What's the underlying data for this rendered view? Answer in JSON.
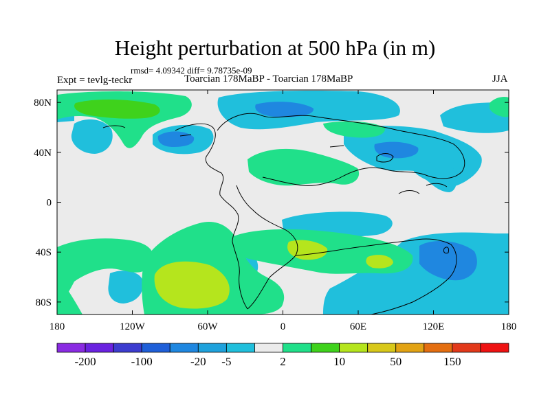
{
  "chart_data": {
    "type": "heatmap",
    "title": "Height perturbation at 500 hPa (in m)",
    "stats_line": "rmsd= 4.09342 diff= 9.78735e-09",
    "left_label": "Expt = tevlg-teckr",
    "subtitle": "Toarcian 178MaBP - Toarcian 178MaBP",
    "season": "JJA",
    "xlim": [
      -180,
      180
    ],
    "ylim": [
      -90,
      90
    ],
    "x_ticks": [
      {
        "value": -180,
        "label": "180"
      },
      {
        "value": -120,
        "label": "120W"
      },
      {
        "value": -60,
        "label": "60W"
      },
      {
        "value": 0,
        "label": "0"
      },
      {
        "value": 60,
        "label": "60E"
      },
      {
        "value": 120,
        "label": "120E"
      },
      {
        "value": 180,
        "label": "180"
      }
    ],
    "y_ticks": [
      {
        "value": 80,
        "label": "80N"
      },
      {
        "value": 40,
        "label": "40N"
      },
      {
        "value": 0,
        "label": "0"
      },
      {
        "value": -40,
        "label": "40S"
      },
      {
        "value": -80,
        "label": "80S"
      }
    ],
    "colorbar": {
      "colors": [
        "#8a2be2",
        "#6a22e0",
        "#3c3ccf",
        "#1f5fd8",
        "#1f87e0",
        "#1fa2dc",
        "#20bfdc",
        "#ebebeb",
        "#20e08a",
        "#3fd21c",
        "#b5e51d",
        "#d8c81a",
        "#e2a314",
        "#e46e10",
        "#e2391a",
        "#ee1212"
      ],
      "tick_labels": [
        {
          "after_index": 1,
          "label": "-200"
        },
        {
          "after_index": 3,
          "label": "-100"
        },
        {
          "after_index": 5,
          "label": "-20"
        },
        {
          "after_index": 6,
          "label": "-5"
        },
        {
          "after_index": 8,
          "label": "2"
        },
        {
          "after_index": 10,
          "label": "10"
        },
        {
          "after_index": 12,
          "label": "50"
        },
        {
          "after_index": 14,
          "label": "150"
        }
      ]
    },
    "fields": [
      {
        "region": "north-atlantic-arctic",
        "lon": [
          -180,
          -95
        ],
        "lat": [
          55,
          90
        ],
        "level": "5 to 10"
      },
      {
        "region": "north-pacific-west",
        "lon": [
          -175,
          -150
        ],
        "lat": [
          30,
          60
        ],
        "level": "-5 to -2"
      },
      {
        "region": "north-pacific-central",
        "lon": [
          -130,
          -85
        ],
        "lat": [
          35,
          60
        ],
        "level": "-5 to -2"
      },
      {
        "region": "arctic-east",
        "lon": [
          -40,
          70
        ],
        "lat": [
          60,
          90
        ],
        "level": "-5 to -2"
      },
      {
        "region": "eurasia",
        "lon": [
          -20,
          55
        ],
        "lat": [
          25,
          55
        ],
        "level": "2 to 5"
      },
      {
        "region": "east-asia",
        "lon": [
          65,
          155
        ],
        "lat": [
          20,
          60
        ],
        "level": "-5 to -2"
      },
      {
        "region": "equatorial-atlantic",
        "lon": [
          0,
          60
        ],
        "lat": [
          -20,
          -5
        ],
        "level": "-5 to -2"
      },
      {
        "region": "south-pacific-core",
        "lon": [
          -110,
          -40
        ],
        "lat": [
          -85,
          -45
        ],
        "level": "10 to 20"
      },
      {
        "region": "south-atlantic",
        "lon": [
          -40,
          110
        ],
        "lat": [
          -60,
          -25
        ],
        "level": "5 to 10"
      },
      {
        "region": "southern-ocean-indian",
        "lon": [
          95,
          180
        ],
        "lat": [
          -90,
          -25
        ],
        "level": "-20 to -5"
      }
    ]
  }
}
